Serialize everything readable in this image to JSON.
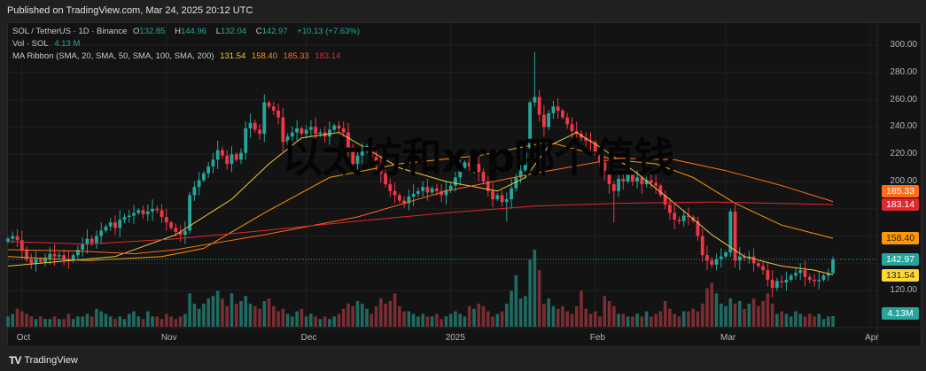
{
  "published": "Published on TradingView.com, Mar 24, 2025 20:12 UTC",
  "legend": {
    "symbol": "SOL / TetherUS · 1D · Binance",
    "o_label": "O",
    "o": "132.85",
    "h_label": "H",
    "h": "144.96",
    "l_label": "L",
    "l": "132.04",
    "c_label": "C",
    "c": "142.97",
    "change": "+10.13 (+7.63%)",
    "vol_label": "Vol · SOL",
    "vol": "4.13 M",
    "ma_label": "MA Ribbon (SMA, 20, SMA, 50, SMA, 100, SMA, 200)",
    "ma20": "131.54",
    "ma50": "158.40",
    "ma100": "185.33",
    "ma200": "183.14"
  },
  "watermark": "以太坊和xrp哪个值钱",
  "footer": {
    "logo": "TV",
    "brand": "TradingView"
  },
  "colors": {
    "up": "#26a69a",
    "down": "#f23645",
    "vol_up": "#1f6b63",
    "vol_down": "#7a2e33",
    "ma20": "#f0c53c",
    "ma50": "#ff9800",
    "ma100": "#ff6d1a",
    "ma200": "#e0282e"
  },
  "price_tags": {
    "ma100": "185.33",
    "ma200": "183.14",
    "ma50": "158.40",
    "last": "142.97",
    "ma20": "131.54",
    "volume": "4.13M"
  },
  "chart_data": {
    "type": "candlestick",
    "title": "SOL / TetherUS · 1D · Binance",
    "start_date": "2024-09-28",
    "y_ticks": [
      "300.00",
      "280.00",
      "260.00",
      "240.00",
      "220.00",
      "200.00",
      "120.00"
    ],
    "y_tick_values": [
      300,
      280,
      260,
      240,
      220,
      200,
      120
    ],
    "ylim": [
      95,
      310
    ],
    "time_ticks": [
      {
        "label": "Oct",
        "index": 3
      },
      {
        "label": "Nov",
        "index": 34
      },
      {
        "label": "Dec",
        "index": 64
      },
      {
        "label": "2025",
        "index": 95
      },
      {
        "label": "Feb",
        "index": 126
      },
      {
        "label": "Mar",
        "index": 154
      },
      {
        "label": "Apr",
        "index": 185
      }
    ],
    "close": [
      158,
      160,
      157,
      150,
      143,
      140,
      143,
      141,
      144,
      147,
      145,
      146,
      143,
      142,
      146,
      150,
      154,
      158,
      155,
      160,
      164,
      167,
      170,
      166,
      172,
      174,
      175,
      177,
      179,
      176,
      178,
      180,
      179,
      174,
      170,
      166,
      163,
      161,
      164,
      190,
      196,
      201,
      206,
      211,
      216,
      223,
      219,
      213,
      220,
      216,
      221,
      239,
      243,
      238,
      235,
      258,
      255,
      252,
      247,
      229,
      233,
      236,
      239,
      235,
      238,
      240,
      235,
      236,
      233,
      238,
      241,
      239,
      236,
      225,
      213,
      219,
      222,
      226,
      218,
      212,
      206,
      198,
      193,
      190,
      186,
      184,
      189,
      191,
      193,
      196,
      192,
      195,
      193,
      190,
      194,
      197,
      203,
      210,
      214,
      211,
      213,
      207,
      200,
      193,
      187,
      190,
      185,
      187,
      195,
      203,
      208,
      223,
      258,
      262,
      249,
      240,
      250,
      255,
      252,
      247,
      242,
      237,
      235,
      232,
      230,
      229,
      222,
      214,
      206,
      198,
      193,
      202,
      200,
      205,
      200,
      203,
      198,
      201,
      199,
      197,
      190,
      183,
      177,
      172,
      171,
      175,
      174,
      171,
      160,
      146,
      142,
      139,
      143,
      145,
      148,
      178,
      142,
      145,
      144,
      145,
      140,
      138,
      135,
      128,
      122,
      127,
      126,
      128,
      131,
      133,
      135,
      130,
      128,
      127,
      128,
      131,
      132.85,
      142.97
    ],
    "first_open": 156,
    "notable_wicks": {
      "113": {
        "high": 295
      },
      "130": {
        "low": 170
      },
      "107": {
        "low": 171
      },
      "155": {
        "high": 180
      },
      "177": {
        "high": 144.96,
        "low": 132.04
      },
      "176": {
        "low": 127
      }
    },
    "volume_millions": [
      4,
      5,
      7,
      6,
      5,
      4,
      3,
      4,
      3,
      3,
      4,
      3,
      3,
      5,
      3,
      4,
      4,
      5,
      4,
      7,
      6,
      5,
      4,
      3,
      4,
      3,
      5,
      6,
      4,
      3,
      6,
      4,
      4,
      3,
      5,
      4,
      3,
      4,
      5,
      13,
      9,
      7,
      9,
      11,
      12,
      14,
      11,
      8,
      13,
      9,
      10,
      12,
      9,
      8,
      7,
      10,
      11,
      8,
      6,
      7,
      5,
      4,
      6,
      7,
      4,
      5,
      4,
      3,
      4,
      3,
      4,
      5,
      7,
      9,
      8,
      10,
      9,
      7,
      5,
      8,
      11,
      9,
      10,
      13,
      8,
      6,
      6,
      5,
      4,
      5,
      4,
      4,
      5,
      3,
      4,
      5,
      6,
      5,
      4,
      8,
      7,
      9,
      8,
      6,
      4,
      5,
      6,
      9,
      14,
      20,
      11,
      12,
      26,
      30,
      22,
      9,
      11,
      8,
      7,
      8,
      6,
      5,
      8,
      14,
      7,
      5,
      6,
      4,
      12,
      10,
      8,
      5,
      5,
      4,
      4,
      5,
      4,
      6,
      4,
      5,
      6,
      10,
      7,
      5,
      4,
      6,
      6,
      7,
      6,
      9,
      15,
      17,
      13,
      9,
      8,
      11,
      9,
      10,
      7,
      9,
      11,
      8,
      10,
      13,
      9,
      5,
      6,
      5,
      4,
      6,
      5,
      4,
      5,
      4,
      5,
      3,
      4,
      4.13
    ],
    "series": [
      {
        "name": "SMA 20",
        "points": [
          [
            0,
            138
          ],
          [
            23,
            145
          ],
          [
            36,
            161
          ],
          [
            48,
            187
          ],
          [
            56,
            213
          ],
          [
            63,
            232
          ],
          [
            71,
            236
          ],
          [
            76,
            226
          ],
          [
            84,
            210
          ],
          [
            94,
            200
          ],
          [
            105,
            193
          ],
          [
            111,
            203
          ],
          [
            116,
            226
          ],
          [
            122,
            236
          ],
          [
            128,
            223
          ],
          [
            135,
            206
          ],
          [
            143,
            184
          ],
          [
            151,
            161
          ],
          [
            158,
            145
          ],
          [
            166,
            138
          ],
          [
            173,
            135
          ],
          [
            177,
            131.54
          ]
        ]
      },
      {
        "name": "SMA 50",
        "points": [
          [
            0,
            145
          ],
          [
            17,
            142
          ],
          [
            33,
            145
          ],
          [
            42,
            151
          ],
          [
            55,
            177
          ],
          [
            69,
            203
          ],
          [
            84,
            213
          ],
          [
            101,
            219
          ],
          [
            116,
            229
          ],
          [
            130,
            216
          ],
          [
            139,
            213
          ],
          [
            147,
            203
          ],
          [
            156,
            184
          ],
          [
            166,
            168
          ],
          [
            177,
            158.4
          ]
        ]
      },
      {
        "name": "SMA 100",
        "points": [
          [
            0,
            150
          ],
          [
            15,
            149
          ],
          [
            27,
            147
          ],
          [
            36,
            150
          ],
          [
            55,
            161
          ],
          [
            75,
            174
          ],
          [
            94,
            193
          ],
          [
            113,
            206
          ],
          [
            131,
            217
          ],
          [
            143,
            216
          ],
          [
            154,
            208
          ],
          [
            166,
            197
          ],
          [
            177,
            185.33
          ]
        ]
      },
      {
        "name": "SMA 200",
        "points": [
          [
            0,
            156
          ],
          [
            17,
            154
          ],
          [
            36,
            158
          ],
          [
            55,
            164
          ],
          [
            75,
            171
          ],
          [
            94,
            177
          ],
          [
            113,
            182
          ],
          [
            131,
            184
          ],
          [
            151,
            185
          ],
          [
            177,
            183.14
          ]
        ]
      }
    ]
  }
}
